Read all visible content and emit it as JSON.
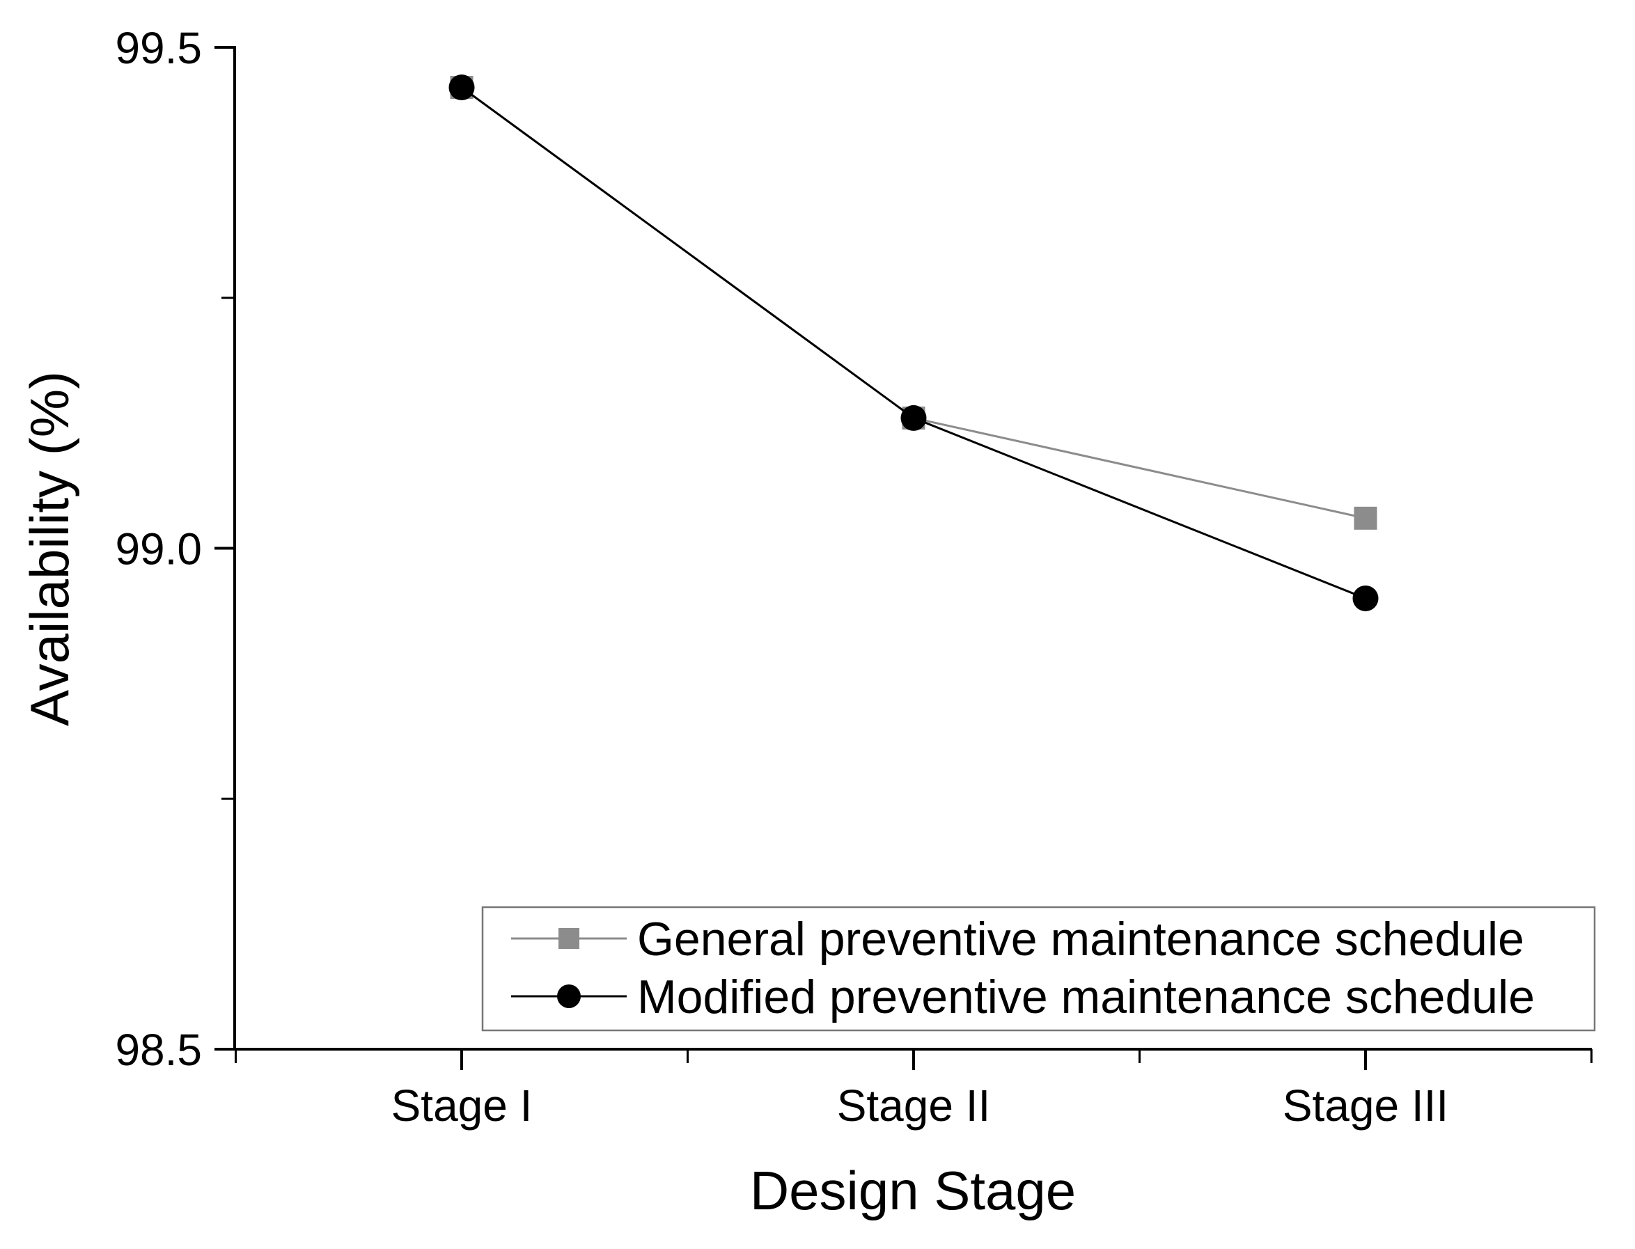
{
  "chart_data": {
    "type": "line",
    "title": "",
    "xlabel": "Design Stage",
    "ylabel": "Availability (%)",
    "categories": [
      "Stage I",
      "Stage II",
      "Stage III"
    ],
    "series": [
      {
        "name": "General preventive maintenance schedule",
        "marker": "square",
        "color": "#8c8c8c",
        "values": [
          99.46,
          99.13,
          99.03
        ]
      },
      {
        "name": "Modified preventive maintenance schedule",
        "marker": "circle",
        "color": "#000000",
        "values": [
          99.46,
          99.13,
          98.95
        ]
      }
    ],
    "ylim": [
      98.5,
      99.5
    ],
    "yticks": [
      99.5,
      99.0,
      98.5
    ],
    "ytick_labels": [
      "99.5",
      "99.0",
      "98.5"
    ],
    "y_minor_ticks": [
      99.25,
      98.75
    ],
    "grid": false,
    "legend_position": "inside-bottom-right",
    "axis_color": "#000000"
  }
}
